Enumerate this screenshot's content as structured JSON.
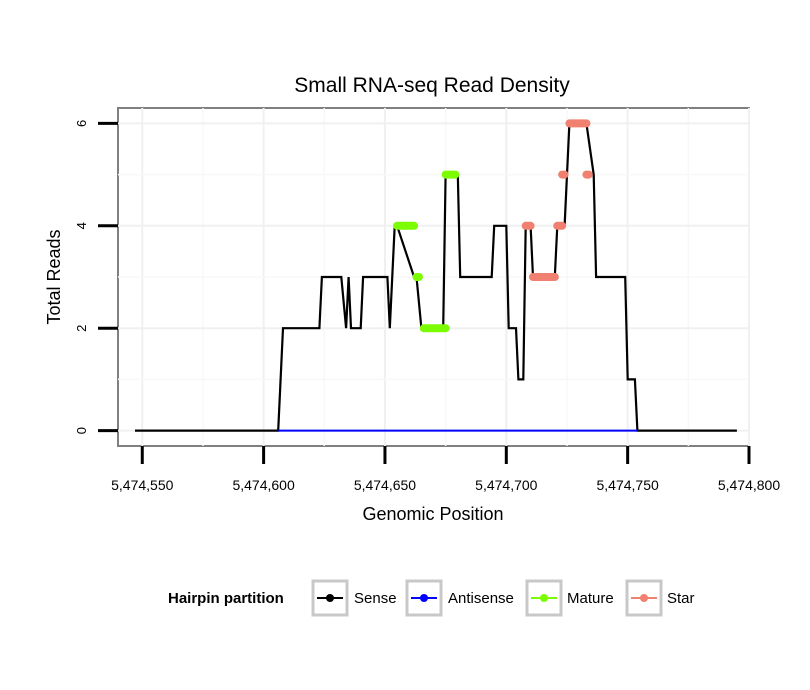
{
  "chart_data": {
    "type": "line",
    "title": "Small RNA-seq Read Density",
    "xlabel": "Genomic Position",
    "ylabel": "Total Reads",
    "xlim": [
      5474540,
      5474800
    ],
    "ylim": [
      -0.3,
      6.3
    ],
    "x_ticks": [
      5474550,
      5474600,
      5474650,
      5474700,
      5474750,
      5474800
    ],
    "x_tick_labels": [
      "5,474,550",
      "5,474,600",
      "5,474,650",
      "5,474,700",
      "5,474,750",
      "5,474,800"
    ],
    "y_ticks": [
      0,
      2,
      4,
      6
    ],
    "y_tick_labels": [
      "0",
      "2",
      "4",
      "6"
    ],
    "grid": true,
    "legend": {
      "title": "Hairpin partition",
      "position": "bottom",
      "entries": [
        {
          "name": "Sense",
          "color": "#000000"
        },
        {
          "name": "Antisense",
          "color": "#0000ff"
        },
        {
          "name": "Mature",
          "color": "#7cfc00"
        },
        {
          "name": "Star",
          "color": "#f08070"
        }
      ]
    },
    "series": [
      {
        "name": "Sense",
        "color": "#000000",
        "x": [
          5474547,
          5474606,
          5474608,
          5474623,
          5474624,
          5474632,
          5474634,
          5474635,
          5474636,
          5474637,
          5474640,
          5474641,
          5474651,
          5474652,
          5474654,
          5474655,
          5474662,
          5474663,
          5474665,
          5474666,
          5474674,
          5474675,
          5474680,
          5474681,
          5474694,
          5474695,
          5474700,
          5474701,
          5474704,
          5474705,
          5474707,
          5474708,
          5474710,
          5474711,
          5474720,
          5474721,
          5474724,
          5474725,
          5474726,
          5474733,
          5474736,
          5474737,
          5474749,
          5474750,
          5474753,
          5474754,
          5474795
        ],
        "y": [
          0,
          0,
          2,
          2,
          3,
          3,
          2,
          3,
          2,
          2,
          2,
          3,
          3,
          2,
          4,
          4,
          3,
          3,
          2,
          2,
          2,
          5,
          5,
          3,
          3,
          4,
          4,
          2,
          2,
          1,
          1,
          4,
          4,
          3,
          3,
          4,
          4,
          5,
          6,
          6,
          5,
          3,
          3,
          1,
          1,
          0,
          0
        ]
      },
      {
        "name": "Antisense",
        "color": "#0000ff",
        "x": [
          5474606,
          5474754
        ],
        "y": [
          0,
          0
        ]
      },
      {
        "name": "Mature",
        "color": "#7cfc00",
        "segments": [
          {
            "x": [
              5474655,
              5474662
            ],
            "y": 4
          },
          {
            "x": [
              5474663,
              5474664
            ],
            "y": 3
          },
          {
            "x": [
              5474666,
              5474675
            ],
            "y": 2
          },
          {
            "x": [
              5474675,
              5474679
            ],
            "y": 5
          }
        ]
      },
      {
        "name": "Star",
        "color": "#f08070",
        "segments": [
          {
            "x": [
              5474708,
              5474710
            ],
            "y": 4
          },
          {
            "x": [
              5474711,
              5474720
            ],
            "y": 3
          },
          {
            "x": [
              5474721,
              5474723
            ],
            "y": 4
          },
          {
            "x": [
              5474723,
              5474724
            ],
            "y": 5
          },
          {
            "x": [
              5474726,
              5474733
            ],
            "y": 6
          },
          {
            "x": [
              5474733,
              5474734
            ],
            "y": 5
          }
        ]
      }
    ]
  }
}
